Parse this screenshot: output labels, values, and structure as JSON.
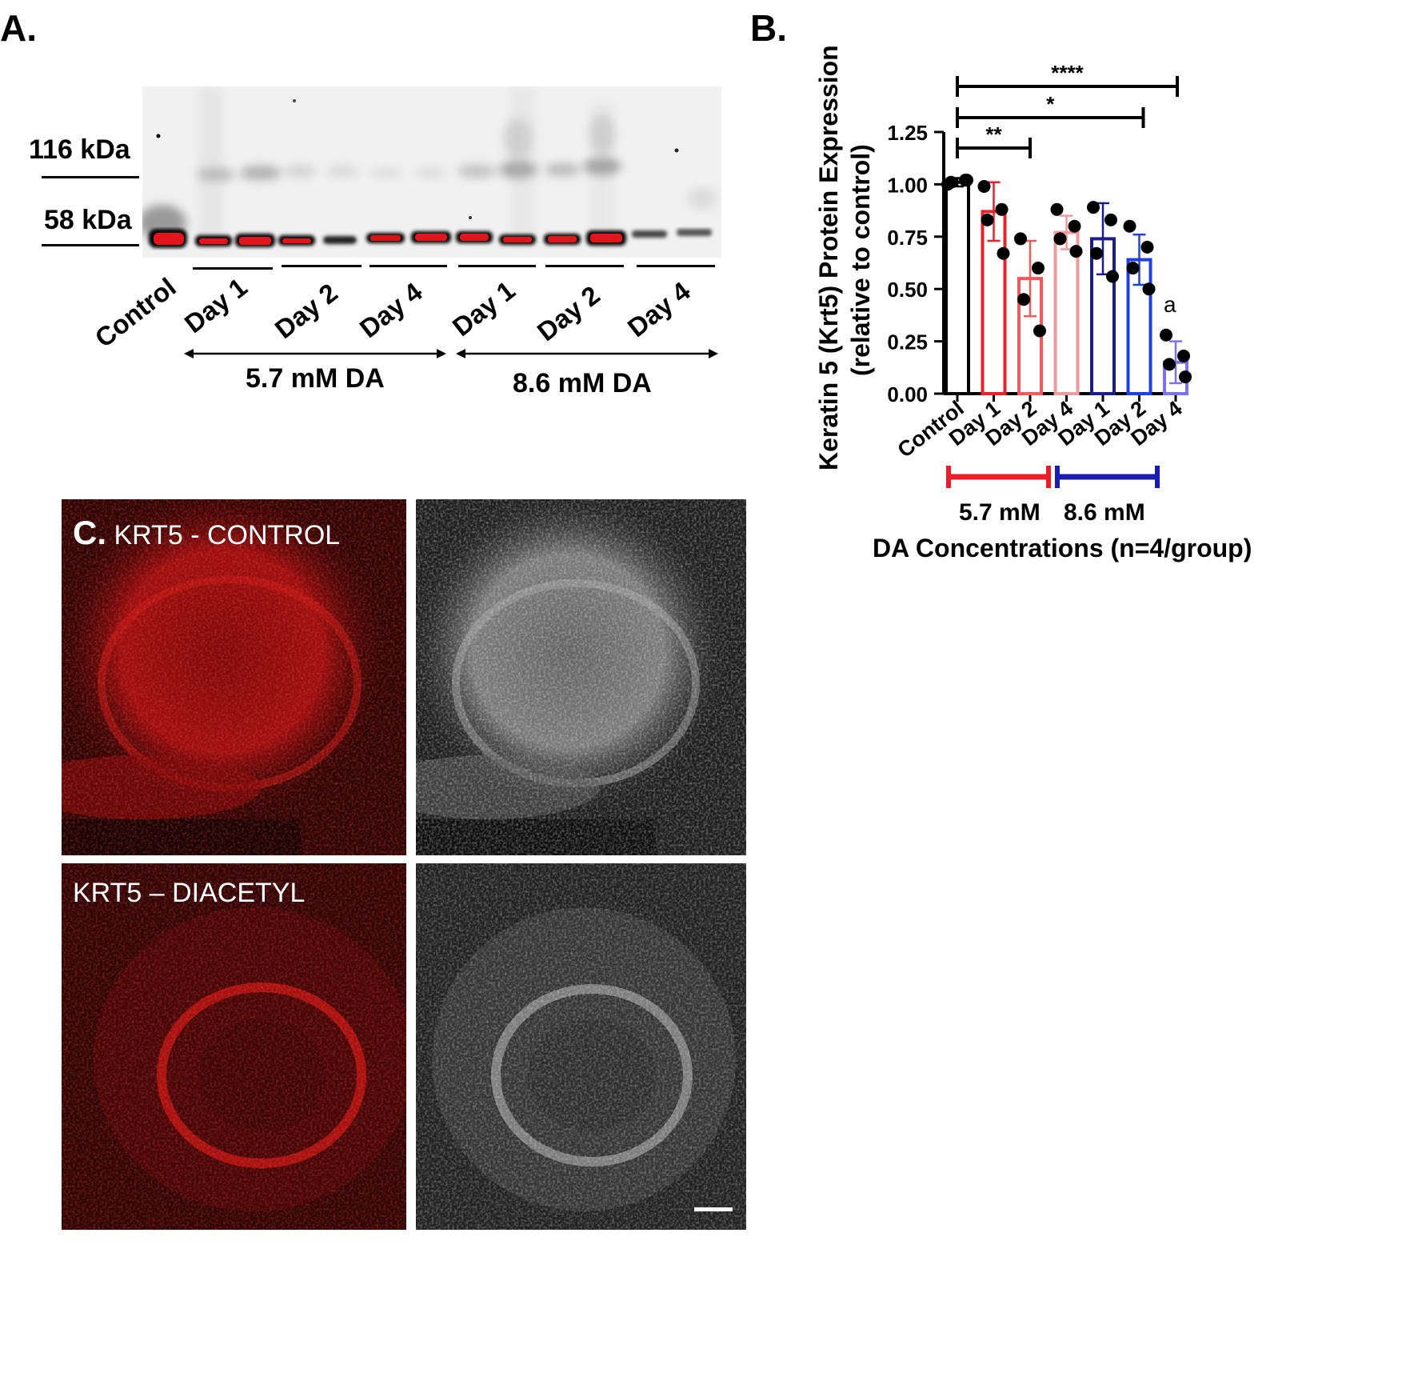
{
  "panels": {
    "a": "A.",
    "b": "B.",
    "c": "C."
  },
  "blot": {
    "markers": [
      "116 kDa",
      "58 kDa"
    ],
    "lanes": [
      "Control",
      "Day 1",
      "Day 2",
      "Day 4",
      "Day 1",
      "Day 2",
      "Day 4"
    ],
    "groups": [
      "5.7 mM DA",
      "8.6 mM DA"
    ]
  },
  "chart_data": {
    "type": "bar",
    "ylabel": "Keratin 5 (Krt5) Protein Expression",
    "ylabel2": "(relative to control)",
    "xlabel": "DA Concentrations (n=4/group)",
    "categories": [
      "Control",
      "Day 1",
      "Day 2",
      "Day 4",
      "Day 1",
      "Day 2",
      "Day 4"
    ],
    "values": [
      1.01,
      0.87,
      0.55,
      0.77,
      0.74,
      0.64,
      0.15
    ],
    "errors": [
      0.02,
      0.14,
      0.18,
      0.08,
      0.17,
      0.12,
      0.1
    ],
    "points": [
      [
        1.0,
        1.02,
        1.01,
        1.02
      ],
      [
        0.99,
        0.88,
        0.83,
        0.67
      ],
      [
        0.74,
        0.6,
        0.45,
        0.3
      ],
      [
        0.88,
        0.8,
        0.74,
        0.68
      ],
      [
        0.89,
        0.83,
        0.67,
        0.56
      ],
      [
        0.8,
        0.7,
        0.6,
        0.5
      ],
      [
        0.28,
        0.18,
        0.14,
        0.08
      ]
    ],
    "colors": [
      "#000000",
      "#e8222a",
      "#ee5a5e",
      "#f19a9c",
      "#1c1d8c",
      "#1f3fe0",
      "#7d72e8"
    ],
    "ylim": [
      0,
      1.25
    ],
    "yticks": [
      "0.00",
      "0.25",
      "0.50",
      "0.75",
      "1.00",
      "1.25"
    ],
    "groups": [
      "5.7 mM",
      "8.6 mM"
    ],
    "group_colors": [
      "#ee1c24",
      "#1a1cb0"
    ],
    "significance": [
      {
        "from": 0,
        "to": 2,
        "label": "**"
      },
      {
        "from": 0,
        "to": 5,
        "label": "*"
      },
      {
        "from": 0,
        "to": 6,
        "label": "****"
      }
    ],
    "annotation": "a"
  },
  "micrographs": {
    "control_label": "KRT5 - CONTROL",
    "diacetyl_label": "KRT5 – DIACETYL"
  }
}
